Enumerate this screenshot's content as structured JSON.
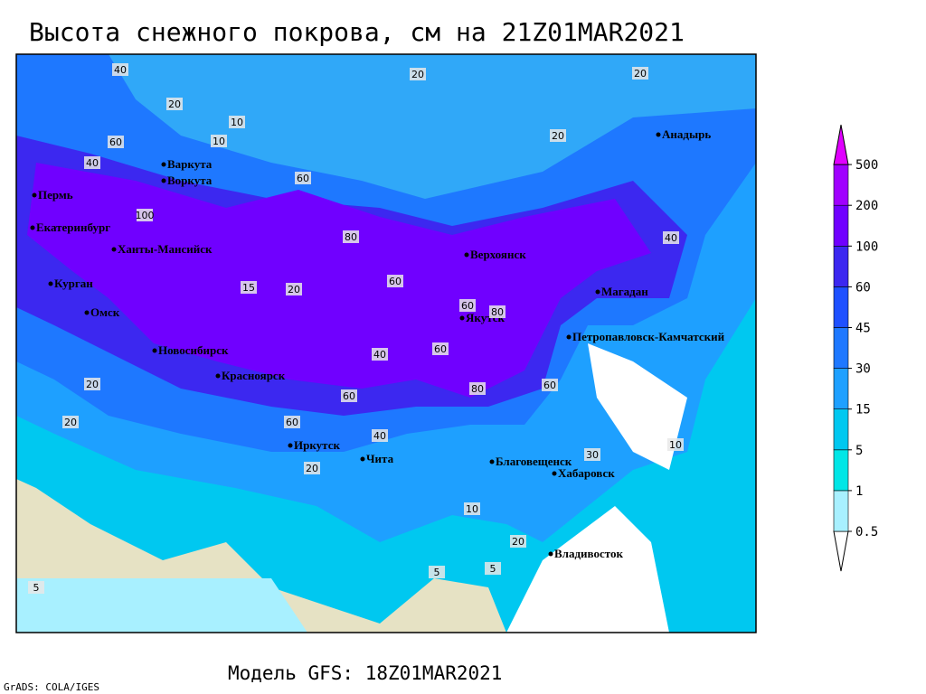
{
  "header": {
    "title": "Высота снежного покрова, см на 21Z01MAR2021"
  },
  "footer": {
    "model": "Модель GFS: 18Z01MAR2021",
    "credit": "GrADS: COLA/IGES"
  },
  "cities": [
    "Варкута",
    "Воркута",
    "Пермь",
    "Екатеринбург",
    "Ханты-Мансийск",
    "Курган",
    "Омск",
    "Новосибирск",
    "Красноярск",
    "Иркутск",
    "Чита",
    "Верхоянск",
    "Якутск",
    "Магадан",
    "Анадырь",
    "Петропавловск-Камчатский",
    "Благовещенск",
    "Хабаровск",
    "Владивосток"
  ],
  "contour_labels": [
    20,
    40,
    20,
    10,
    10,
    20,
    60,
    40,
    60,
    80,
    60,
    80,
    60,
    60,
    40,
    20,
    20,
    80,
    60,
    60,
    40,
    20,
    10,
    5,
    30,
    20,
    5,
    10,
    20,
    5,
    60,
    40,
    20,
    15,
    100
  ],
  "colorbar": {
    "levels": [
      0.5,
      1,
      5,
      15,
      30,
      45,
      60,
      100,
      200,
      500
    ],
    "colors": [
      "#ffffff",
      "#a8f0ff",
      "#00e6e6",
      "#00c8f0",
      "#1ea0ff",
      "#1e78ff",
      "#1e50ff",
      "#3c28f0",
      "#7000ff",
      "#a000ff",
      "#e000ff"
    ]
  }
}
